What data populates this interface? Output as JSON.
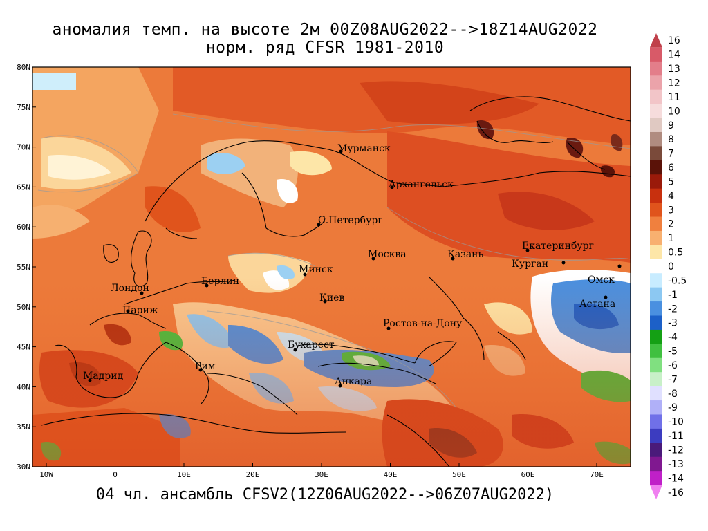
{
  "title_line1": "аномалия темп. на высоте 2м 00Z08AUG2022-->18Z14AUG2022",
  "title_line2": "норм. ряд CFSR 1981-2010",
  "bottom_label": "04 чл. ансамбль CFSV2(12Z06AUG2022-->06Z07AUG2022)",
  "lat_labels": [
    "80N",
    "75N",
    "70N",
    "65N",
    "60N",
    "55N",
    "50N",
    "45N",
    "40N",
    "35N",
    "30N"
  ],
  "lon_labels": [
    "10W",
    "0",
    "10E",
    "20E",
    "30E",
    "40E",
    "50E",
    "60E",
    "70E"
  ],
  "cities": [
    {
      "name": "Мурманск"
    },
    {
      "name": "Архангельск"
    },
    {
      "name": "С.Петербург"
    },
    {
      "name": "Москва"
    },
    {
      "name": "Казань"
    },
    {
      "name": "Екатеринбург"
    },
    {
      "name": "Курган"
    },
    {
      "name": "Минск"
    },
    {
      "name": "Омск"
    },
    {
      "name": "Лондон"
    },
    {
      "name": "Берлин"
    },
    {
      "name": "Астана"
    },
    {
      "name": "Киев"
    },
    {
      "name": "Париж"
    },
    {
      "name": "Ростов-на-Дону"
    },
    {
      "name": "Бухарест"
    },
    {
      "name": "Рим"
    },
    {
      "name": "Мадрид"
    },
    {
      "name": "Анкара"
    }
  ],
  "colorbar": {
    "labels": [
      "16",
      "14",
      "13",
      "12",
      "11",
      "10",
      "9",
      "8",
      "7",
      "6",
      "5",
      "4",
      "3",
      "2",
      "1",
      "0.5",
      "0",
      "-0.5",
      "-1",
      "-2",
      "-3",
      "-4",
      "-5",
      "-6",
      "-7",
      "-8",
      "-9",
      "-10",
      "-11",
      "-12",
      "-13",
      "-14",
      "-16"
    ],
    "colors": [
      "#c0404a",
      "#d85a68",
      "#e37e8a",
      "#eba3aa",
      "#f2c5c8",
      "#f6dcdc",
      "#e0c9c2",
      "#b08c80",
      "#7a4a3a",
      "#5a1208",
      "#9a1a0a",
      "#c8300e",
      "#e0541c",
      "#f0803e",
      "#f8b070",
      "#fde6a8",
      "#ffffff",
      "#c8ecff",
      "#8cc8f2",
      "#4a90e0",
      "#1c60c8",
      "#14a014",
      "#40c040",
      "#80e080",
      "#c8f0c8",
      "#e0e0ff",
      "#b0b0f8",
      "#7070e8",
      "#3c3cc0",
      "#4a1a7a",
      "#801890",
      "#c020c8",
      "#f080f0"
    ]
  }
}
